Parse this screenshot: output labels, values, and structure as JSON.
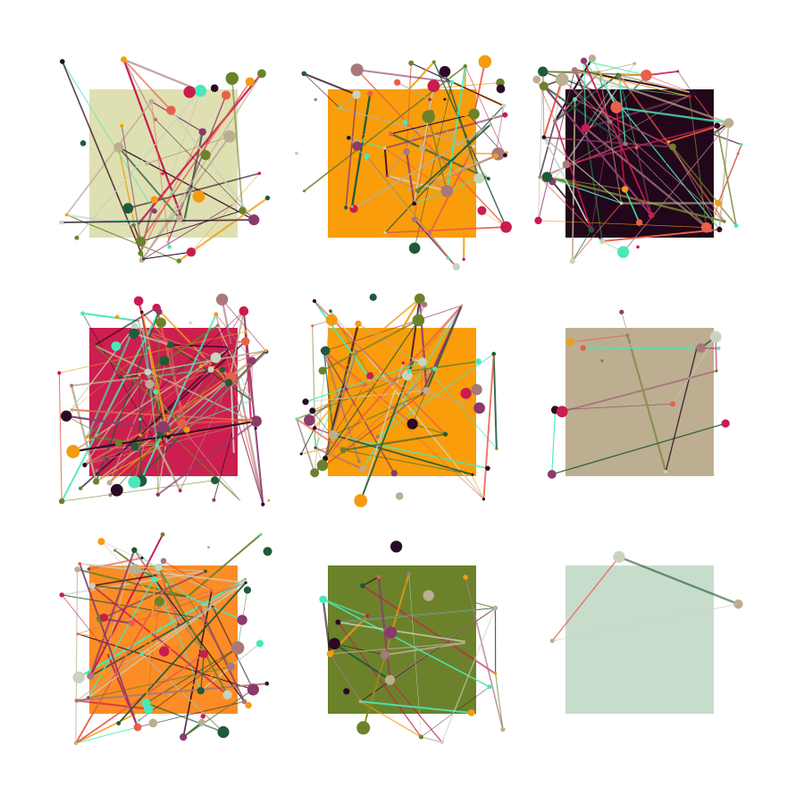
{
  "palette": [
    "#6b822a",
    "#e8604a",
    "#4ae8b8",
    "#2a0a24",
    "#8b3a6b",
    "#c81c4f",
    "#bcae91",
    "#c8d4c0",
    "#1f5a3a",
    "#f39c12",
    "#a8787a"
  ],
  "panels": [
    {
      "background": "#dfe0b2",
      "line_count": 40,
      "dot_count": 45
    },
    {
      "background": "#fa9d0a",
      "line_count": 60,
      "dot_count": 60
    },
    {
      "background": "#22061a",
      "line_count": 90,
      "dot_count": 50
    },
    {
      "background": "#cc1f4f",
      "line_count": 110,
      "dot_count": 80
    },
    {
      "background": "#fa9d0a",
      "line_count": 70,
      "dot_count": 55
    },
    {
      "background": "#bdae91",
      "line_count": 18,
      "dot_count": 16
    },
    {
      "background": "#fb8c26",
      "line_count": 70,
      "dot_count": 65
    },
    {
      "background": "#6b822a",
      "line_count": 35,
      "dot_count": 25
    },
    {
      "background": "#c8dccb",
      "line_count": 4,
      "dot_count": 3
    }
  ]
}
